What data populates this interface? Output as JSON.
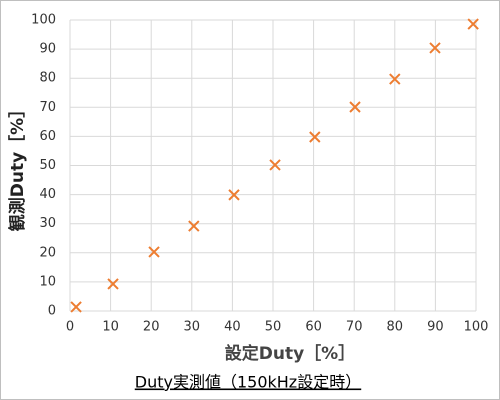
{
  "chart_data": {
    "type": "scatter",
    "title": "Duty実測値（150kHz設定時）",
    "x_label": "設定Duty［%］",
    "y_label": "観測Duty［%］",
    "series": [
      {
        "name": "観測Duty",
        "color": "#ed7d31",
        "x": [
          1.5,
          10.6,
          20.7,
          30.5,
          40.4,
          50.5,
          60.3,
          70.2,
          80,
          89.9,
          99.3
        ],
        "values": [
          1.4,
          9.3,
          20.3,
          29.2,
          39.9,
          50.2,
          59.8,
          70.1,
          79.7,
          90.4,
          98.6
        ]
      }
    ],
    "xlim": [
      0,
      100
    ],
    "xticks": [
      0,
      10,
      20,
      30,
      40,
      50,
      60,
      70,
      80,
      90,
      100
    ],
    "ylim": [
      0,
      100
    ],
    "yticks": [
      0,
      10,
      20,
      30,
      40,
      50,
      60,
      70,
      80,
      90,
      100
    ],
    "grid": true
  }
}
